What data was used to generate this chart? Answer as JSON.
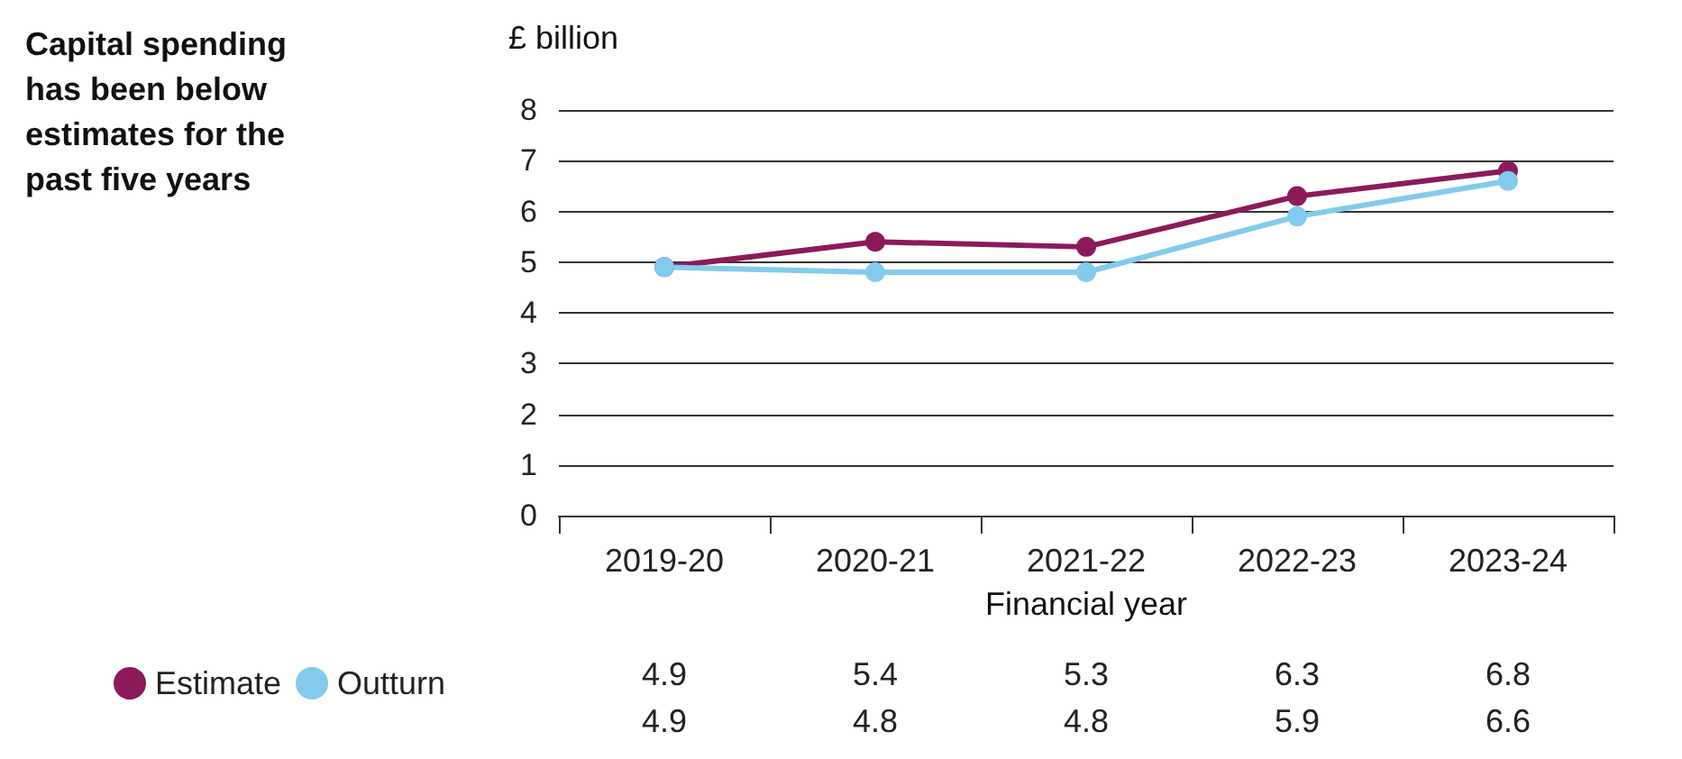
{
  "chart_data": {
    "type": "line",
    "title": "Capital spending has been below estimates for the past five years",
    "ylabel": "£ billion",
    "xlabel": "Financial year",
    "categories": [
      "2019-20",
      "2020-21",
      "2021-22",
      "2022-23",
      "2023-24"
    ],
    "series": [
      {
        "name": "Estimate",
        "color": "#8c1a5b",
        "values": [
          4.9,
          5.4,
          5.3,
          6.3,
          6.8
        ]
      },
      {
        "name": "Outturn",
        "color": "#82cbec",
        "values": [
          4.9,
          4.8,
          4.8,
          5.9,
          6.6
        ]
      }
    ],
    "ylim": [
      0,
      8
    ],
    "yticks": [
      0,
      1,
      2,
      3,
      4,
      5,
      6,
      7,
      8
    ],
    "grid": "y",
    "legend": "bottom left",
    "marker": "circle",
    "line_style": "solid",
    "data_labels": true
  }
}
